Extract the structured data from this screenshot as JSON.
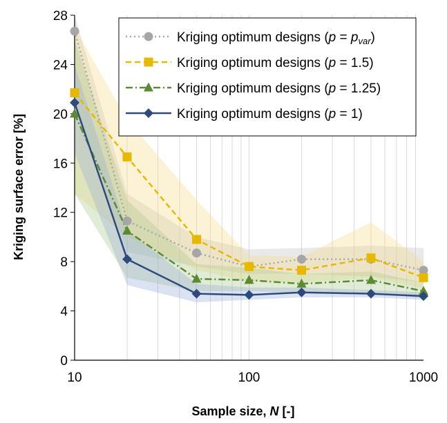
{
  "chart_data": {
    "type": "line",
    "xscale": "log",
    "xlim": [
      10,
      1000
    ],
    "ylim": [
      0,
      28
    ],
    "x_ticks": [
      "10",
      "100",
      "1000"
    ],
    "y_ticks": [
      "0",
      "4",
      "8",
      "12",
      "16",
      "20",
      "24",
      "28"
    ],
    "xlabel_main": "Sample size, ",
    "xlabel_var": "N",
    "xlabel_unit": " [-]",
    "ylabel": "Kriging surface error [%]",
    "x": [
      10,
      20,
      50,
      100,
      200,
      500,
      1000
    ],
    "grid": "vertical minor lines",
    "legend_position": "top-right",
    "series": [
      {
        "legend_prefix": "Kriging optimum designs (",
        "legend_p": "p",
        "legend_eq": " = ",
        "legend_value": "",
        "legend_value_italic": "p",
        "legend_sub": "var",
        "legend_suffix": ")",
        "color": "#a6a6a6",
        "band_color": "#bfbfbf",
        "dash": "2,4",
        "marker": "circle",
        "values": [
          26.7,
          11.3,
          8.7,
          7.6,
          8.2,
          8.2,
          7.3
        ],
        "band_lower": [
          20.5,
          8.8,
          7.6,
          7.0,
          7.0,
          6.8,
          6.3
        ],
        "band_upper": [
          28.0,
          13.5,
          10.0,
          9.0,
          9.1,
          9.3,
          9.1
        ]
      },
      {
        "legend_prefix": "Kriging optimum designs (",
        "legend_p": "p",
        "legend_eq": " = ",
        "legend_value": "1.5",
        "legend_suffix": ")",
        "color": "#e6b800",
        "band_color": "#f5dc8a",
        "dash": "8,5",
        "marker": "square",
        "values": [
          21.7,
          16.5,
          9.8,
          7.6,
          7.3,
          8.3,
          6.7
        ],
        "band_lower": [
          13.5,
          10.0,
          7.3,
          6.4,
          6.3,
          6.7,
          5.8
        ],
        "band_upper": [
          27.0,
          19.5,
          13.0,
          8.5,
          8.4,
          11.2,
          8.0
        ]
      },
      {
        "legend_prefix": "Kriging optimum designs (",
        "legend_p": "p",
        "legend_eq": " = ",
        "legend_value": "1.25",
        "legend_suffix": ")",
        "color": "#5a8a32",
        "band_color": "#a9c98a",
        "dash": "10,4,2,4",
        "marker": "triangle",
        "values": [
          20.0,
          10.5,
          6.6,
          6.5,
          6.2,
          6.5,
          5.6
        ],
        "band_lower": [
          13.5,
          6.7,
          5.6,
          5.6,
          5.5,
          5.5,
          5.0
        ],
        "band_upper": [
          26.0,
          13.0,
          7.8,
          7.5,
          7.0,
          7.2,
          6.3
        ]
      },
      {
        "legend_prefix": "Kriging optimum designs (",
        "legend_p": "p",
        "legend_eq": " = ",
        "legend_value": "1",
        "legend_suffix": ")",
        "color": "#2e4a7d",
        "band_color": "#98acd6",
        "dash": "",
        "marker": "diamond",
        "values": [
          20.9,
          8.2,
          5.4,
          5.3,
          5.5,
          5.4,
          5.2
        ],
        "band_lower": [
          16.8,
          6.1,
          4.7,
          4.9,
          5.1,
          5.1,
          4.9
        ],
        "band_upper": [
          24.0,
          10.5,
          6.2,
          5.9,
          5.9,
          5.7,
          5.5
        ]
      }
    ]
  }
}
